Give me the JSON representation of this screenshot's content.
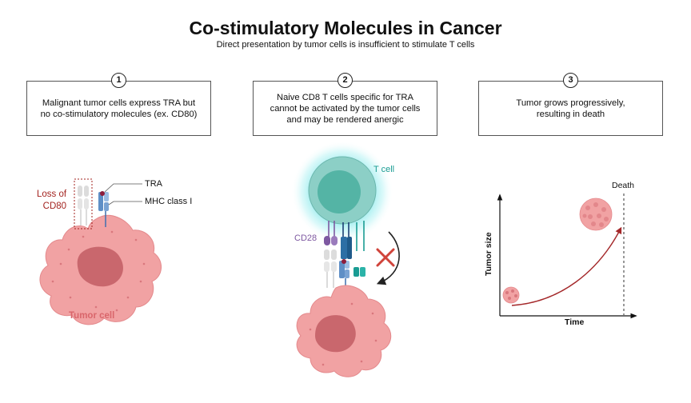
{
  "header": {
    "title": "Co-stimulatory Molecules in Cancer",
    "subtitle": "Direct presentation by tumor cells is insufficient to stimulate T cells"
  },
  "steps": [
    {
      "number": "1",
      "text": "Malignant tumor cells express TRA but\nno co-stimulatory molecules (ex. CD80)"
    },
    {
      "number": "2",
      "text": "Naive CD8 T cells specific for TRA\ncannot be activated by the tumor cells\nand may be rendered anergic"
    },
    {
      "number": "3",
      "text": "Tumor grows progressively,\nresulting in death"
    }
  ],
  "panel1": {
    "loss_label": "Loss of\nCD80",
    "tra_label": "TRA",
    "mhc_label": "MHC class I",
    "cell_label": "Tumor cell"
  },
  "panel2": {
    "tcell_label": "T cell",
    "cd28_label": "CD28"
  },
  "panel3": {
    "death_label": "Death",
    "ylabel": "Tumor size",
    "xlabel": "Time"
  },
  "colors": {
    "tumor_fill": "#f1a2a3",
    "tumor_nucleus": "#c9676d",
    "tcell_fill": "#8ccfc6",
    "tcell_glow": "#6fe3e5",
    "loss_red": "#a3231f",
    "tcell_teal": "#1a9c93",
    "cd28_purple": "#7e59a1",
    "mhc_blue": "#5f8fc6",
    "curve_red": "#a4282a",
    "cross_red": "#d0433a"
  }
}
